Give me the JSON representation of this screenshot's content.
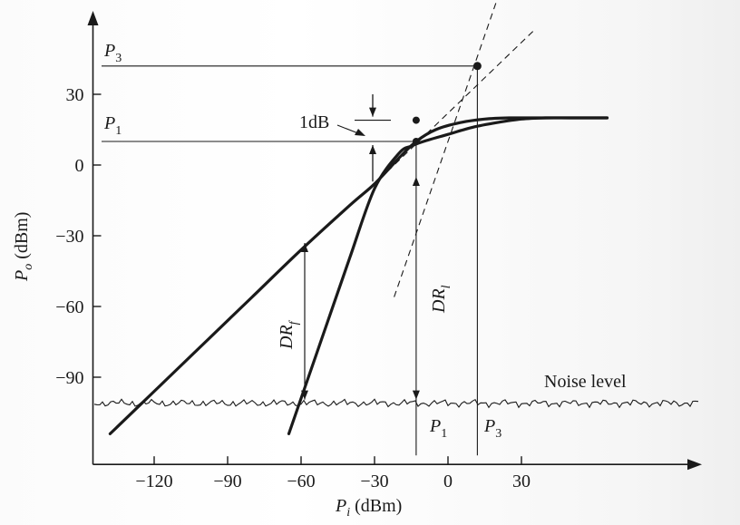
{
  "chart_data": {
    "type": "line",
    "title": "",
    "xlabel_main": "P",
    "xlabel_sub": "i",
    "xlabel_unit": " (dBm)",
    "ylabel_main": "P",
    "ylabel_sub": "o",
    "ylabel_unit": " (dBm)",
    "xlim": [
      -145,
      70
    ],
    "ylim": [
      -127,
      45
    ],
    "x_ticks": [
      -120,
      -90,
      -60,
      -30,
      0,
      30
    ],
    "x_tick_labels": [
      "−120",
      "−90",
      "−60",
      "−30",
      "0",
      "30"
    ],
    "y_ticks": [
      30,
      0,
      -30,
      -60,
      -90
    ],
    "y_tick_labels": [
      "30",
      "0",
      "−30",
      "−60",
      "−90"
    ],
    "series": [
      {
        "x": [
          -138,
          -120,
          -100,
          -80,
          -60,
          -40,
          -30,
          -20,
          -13,
          -5,
          5,
          15,
          25,
          35,
          50,
          65
        ],
        "y": [
          -114,
          -96,
          -76,
          -56,
          -36,
          -17,
          -8,
          3,
          10,
          15,
          18,
          19.5,
          20,
          20,
          20,
          20
        ]
      },
      {
        "x": [
          -65,
          -60,
          -50,
          -40,
          -30,
          -20,
          -15,
          -10,
          0,
          10,
          20,
          30,
          40,
          50,
          65
        ],
        "y": [
          -114,
          -99,
          -69,
          -39,
          -10,
          5,
          8,
          10,
          13,
          16,
          18,
          19.5,
          20,
          20,
          20
        ]
      }
    ],
    "noise_level": -101,
    "extrapolation_lines": {
      "fundamental": {
        "slope": 1,
        "intercept": 22
      },
      "third_order": {
        "slope": 3,
        "intercept": 10
      }
    },
    "points": {
      "p1_compressed": {
        "x": -13,
        "y": 10
      },
      "p1_linear": {
        "x": -13,
        "y": 19
      },
      "intercept": {
        "x": 12,
        "y": 42
      }
    },
    "annotations": {
      "p3_left_main": "P",
      "p3_left_sub": "3",
      "p1_left_main": "P",
      "p1_left_sub": "1",
      "one_db": "1dB",
      "dr_f_main": "DR",
      "dr_f_sub": "f",
      "dr_l_main": "DR",
      "dr_l_sub": "l",
      "noise_level": "Noise level",
      "p1_bottom_main": "P",
      "p1_bottom_sub": "1",
      "p3_bottom_main": "P",
      "p3_bottom_sub": "3"
    }
  }
}
